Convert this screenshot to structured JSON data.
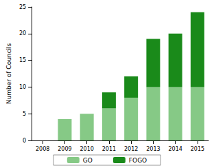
{
  "chart_data": {
    "type": "bar",
    "stacked": true,
    "grid": false,
    "legend": "bottom",
    "ylabel": "Number of Councils",
    "categories": [
      "2008",
      "2009",
      "2010",
      "2011",
      "2012",
      "2013",
      "2014",
      "2015"
    ],
    "series": [
      {
        "name": "GO",
        "color": "#86c986",
        "values": [
          0,
          4,
          5,
          6,
          8,
          10,
          10,
          10
        ]
      },
      {
        "name": "FOGO",
        "color": "#1a8a1a",
        "values": [
          0,
          0,
          0,
          3,
          4,
          9,
          10,
          14
        ]
      }
    ],
    "ylim": [
      0,
      25
    ],
    "yticks": [
      0,
      5,
      10,
      15,
      20,
      25
    ]
  }
}
